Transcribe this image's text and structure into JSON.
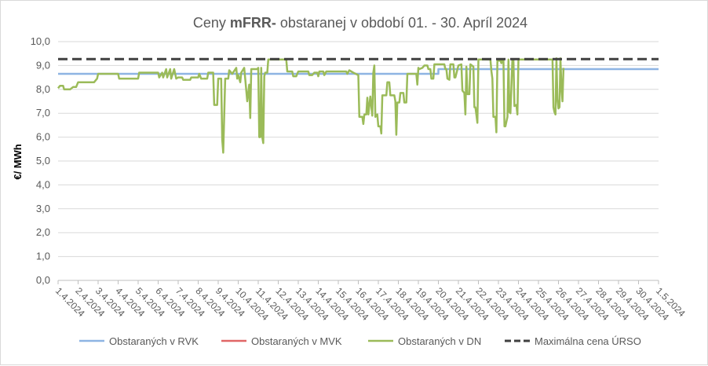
{
  "chart_data": {
    "type": "line",
    "title_parts": [
      "Ceny ",
      "mFRR-",
      " obstaranej v období 01. - 30. Apríl 2024"
    ],
    "xlabel": "",
    "ylabel": "€/ MWh",
    "ylim": [
      0,
      10
    ],
    "ytick_labels": [
      "0,0",
      "1,0",
      "2,0",
      "3,0",
      "4,0",
      "5,0",
      "6,0",
      "7,0",
      "8,0",
      "9,0",
      "10,0"
    ],
    "x_tick_labels": [
      "1.4.2024",
      "2.4.2024",
      "3.4.2024",
      "4.4.2024",
      "5.4.2024",
      "6.4.2024",
      "7.4.2024",
      "8.4.2024",
      "9.4.2024",
      "10.4.2024",
      "11.4.2024",
      "12.4.2024",
      "13.4.2024",
      "14.4.2024",
      "15.4.2024",
      "16.4.2024",
      "17.4.2024",
      "18.4.2024",
      "19.4.2024",
      "20.4.2024",
      "21.4.2024",
      "22.4.2024",
      "23.4.2024",
      "24.4.2024",
      "25.4.2024",
      "26.4.2024",
      "27.4.2024",
      "28.4.2024",
      "29.4.2024",
      "30.4.2024",
      "1.5.2024"
    ],
    "legend_position": "bottom",
    "grid": true,
    "series": [
      {
        "name": "Obstaraných v RVK",
        "color": "#8eb4e3",
        "style": "solid",
        "points": [
          [
            0,
            8.65
          ],
          [
            2,
            8.65
          ],
          [
            2,
            8.65
          ],
          [
            19,
            8.65
          ],
          [
            19,
            8.85
          ],
          [
            30,
            8.85
          ]
        ]
      },
      {
        "name": "Obstaraných v MVK",
        "color": "#e06666",
        "style": "solid",
        "points": []
      },
      {
        "name": "Obstaraných v DN",
        "color": "#9bbb59",
        "style": "solid",
        "points": [
          [
            0.0,
            8.05
          ],
          [
            0.1,
            8.15
          ],
          [
            0.25,
            8.15
          ],
          [
            0.3,
            8.0
          ],
          [
            0.6,
            8.0
          ],
          [
            0.75,
            8.1
          ],
          [
            0.9,
            8.1
          ],
          [
            1.0,
            8.3
          ],
          [
            1.8,
            8.3
          ],
          [
            1.95,
            8.45
          ],
          [
            2.0,
            8.65
          ],
          [
            3.0,
            8.65
          ],
          [
            3.05,
            8.45
          ],
          [
            4.0,
            8.45
          ],
          [
            4.05,
            8.7
          ],
          [
            5.0,
            8.7
          ],
          [
            5.05,
            8.5
          ],
          [
            5.2,
            8.7
          ],
          [
            5.25,
            8.5
          ],
          [
            5.4,
            8.85
          ],
          [
            5.45,
            8.5
          ],
          [
            5.6,
            8.85
          ],
          [
            5.65,
            8.45
          ],
          [
            5.8,
            8.85
          ],
          [
            5.9,
            8.45
          ],
          [
            6.0,
            8.5
          ],
          [
            6.2,
            8.5
          ],
          [
            6.25,
            8.4
          ],
          [
            6.6,
            8.4
          ],
          [
            6.65,
            8.5
          ],
          [
            7.0,
            8.5
          ],
          [
            7.05,
            8.65
          ],
          [
            7.15,
            8.45
          ],
          [
            7.45,
            8.45
          ],
          [
            7.5,
            8.7
          ],
          [
            7.75,
            8.7
          ],
          [
            7.8,
            7.35
          ],
          [
            7.95,
            7.35
          ],
          [
            8.0,
            8.45
          ],
          [
            8.15,
            8.45
          ],
          [
            8.2,
            5.9
          ],
          [
            8.25,
            5.35
          ],
          [
            8.35,
            8.45
          ],
          [
            8.5,
            8.45
          ],
          [
            8.55,
            8.8
          ],
          [
            8.7,
            8.65
          ],
          [
            8.9,
            8.9
          ],
          [
            8.95,
            8.45
          ],
          [
            9.0,
            8.6
          ],
          [
            9.1,
            8.3
          ],
          [
            9.15,
            8.7
          ],
          [
            9.3,
            8.9
          ],
          [
            9.35,
            8.45
          ],
          [
            9.45,
            7.5
          ],
          [
            9.55,
            8.2
          ],
          [
            9.6,
            6.8
          ],
          [
            9.65,
            8.85
          ],
          [
            9.85,
            8.85
          ],
          [
            9.95,
            8.85
          ],
          [
            10.0,
            8.9
          ],
          [
            10.05,
            6.0
          ],
          [
            10.1,
            6.0
          ],
          [
            10.15,
            8.9
          ],
          [
            10.2,
            6.0
          ],
          [
            10.25,
            5.75
          ],
          [
            10.3,
            8.55
          ],
          [
            10.35,
            8.7
          ],
          [
            10.45,
            8.7
          ],
          [
            10.5,
            9.25
          ],
          [
            11.4,
            9.25
          ],
          [
            11.45,
            8.75
          ],
          [
            11.7,
            8.75
          ],
          [
            11.75,
            8.55
          ],
          [
            11.9,
            8.55
          ],
          [
            12.0,
            8.75
          ],
          [
            12.5,
            8.75
          ],
          [
            12.55,
            8.6
          ],
          [
            12.7,
            8.6
          ],
          [
            12.8,
            8.7
          ],
          [
            12.95,
            8.7
          ],
          [
            13.0,
            8.55
          ],
          [
            13.05,
            8.75
          ],
          [
            13.25,
            8.75
          ],
          [
            13.3,
            8.6
          ],
          [
            13.4,
            8.75
          ],
          [
            14.4,
            8.75
          ],
          [
            14.45,
            8.65
          ],
          [
            14.55,
            8.8
          ],
          [
            14.75,
            8.7
          ],
          [
            15.0,
            8.6
          ],
          [
            15.05,
            6.85
          ],
          [
            15.2,
            6.85
          ],
          [
            15.25,
            6.55
          ],
          [
            15.3,
            6.95
          ],
          [
            15.4,
            6.95
          ],
          [
            15.45,
            7.65
          ],
          [
            15.5,
            6.95
          ],
          [
            15.6,
            7.7
          ],
          [
            15.7,
            6.9
          ],
          [
            15.75,
            8.7
          ],
          [
            15.8,
            9.0
          ],
          [
            15.85,
            6.85
          ],
          [
            15.95,
            6.95
          ],
          [
            16.0,
            6.45
          ],
          [
            16.1,
            6.45
          ],
          [
            16.15,
            6.15
          ],
          [
            16.2,
            7.75
          ],
          [
            16.4,
            7.75
          ],
          [
            16.45,
            8.3
          ],
          [
            16.55,
            8.3
          ],
          [
            16.6,
            7.75
          ],
          [
            16.8,
            7.75
          ],
          [
            16.85,
            7.5
          ],
          [
            16.9,
            6.1
          ],
          [
            16.95,
            7.45
          ],
          [
            17.05,
            7.45
          ],
          [
            17.1,
            7.85
          ],
          [
            17.25,
            7.85
          ],
          [
            17.3,
            7.45
          ],
          [
            17.4,
            7.45
          ],
          [
            17.45,
            8.65
          ],
          [
            17.9,
            8.65
          ],
          [
            17.95,
            8.2
          ],
          [
            18.0,
            8.9
          ],
          [
            18.05,
            8.85
          ],
          [
            18.2,
            8.9
          ],
          [
            18.3,
            9.0
          ],
          [
            18.45,
            9.0
          ],
          [
            18.5,
            8.85
          ],
          [
            18.6,
            8.85
          ],
          [
            18.65,
            8.45
          ],
          [
            18.75,
            8.45
          ],
          [
            18.8,
            9.05
          ],
          [
            19.3,
            9.05
          ],
          [
            19.35,
            8.85
          ],
          [
            19.4,
            8.85
          ],
          [
            19.45,
            8.45
          ],
          [
            19.55,
            8.4
          ],
          [
            19.6,
            9.05
          ],
          [
            19.75,
            9.05
          ],
          [
            19.8,
            8.5
          ],
          [
            19.85,
            8.5
          ],
          [
            20.0,
            9.0
          ],
          [
            20.15,
            9.05
          ],
          [
            20.2,
            7.95
          ],
          [
            20.3,
            7.85
          ],
          [
            20.35,
            6.95
          ],
          [
            20.4,
            8.95
          ],
          [
            20.45,
            7.8
          ],
          [
            20.55,
            7.8
          ],
          [
            20.6,
            9.05
          ],
          [
            20.75,
            8.95
          ],
          [
            20.8,
            7.25
          ],
          [
            20.85,
            7.25
          ],
          [
            20.95,
            6.6
          ],
          [
            21.0,
            9.25
          ],
          [
            21.6,
            9.25
          ],
          [
            21.65,
            8.75
          ],
          [
            21.7,
            8.45
          ],
          [
            21.75,
            6.85
          ],
          [
            21.85,
            6.85
          ],
          [
            21.9,
            6.2
          ],
          [
            21.95,
            9.2
          ],
          [
            22.1,
            9.2
          ],
          [
            22.15,
            9.1
          ],
          [
            22.2,
            9.25
          ],
          [
            22.25,
            9.2
          ],
          [
            22.3,
            6.45
          ],
          [
            22.35,
            6.45
          ],
          [
            22.45,
            6.85
          ],
          [
            22.5,
            9.25
          ],
          [
            22.55,
            7.05
          ],
          [
            22.6,
            7.0
          ],
          [
            22.7,
            9.25
          ],
          [
            22.75,
            9.25
          ],
          [
            22.8,
            7.3
          ],
          [
            22.9,
            7.35
          ],
          [
            22.95,
            6.95
          ],
          [
            23.0,
            9.25
          ],
          [
            24.7,
            9.25
          ],
          [
            24.75,
            7.25
          ],
          [
            24.8,
            7.05
          ],
          [
            24.85,
            6.95
          ],
          [
            24.9,
            9.3
          ],
          [
            24.95,
            7.6
          ],
          [
            25.0,
            7.2
          ],
          [
            25.05,
            7.25
          ],
          [
            25.1,
            9.3
          ],
          [
            25.15,
            8.1
          ],
          [
            25.2,
            7.5
          ],
          [
            25.25,
            8.9
          ]
        ]
      },
      {
        "name": "Maximálna cena ÚRSO",
        "color": "#404040",
        "style": "dashed",
        "points": [
          [
            0,
            9.27
          ],
          [
            30,
            9.27
          ]
        ]
      }
    ]
  }
}
